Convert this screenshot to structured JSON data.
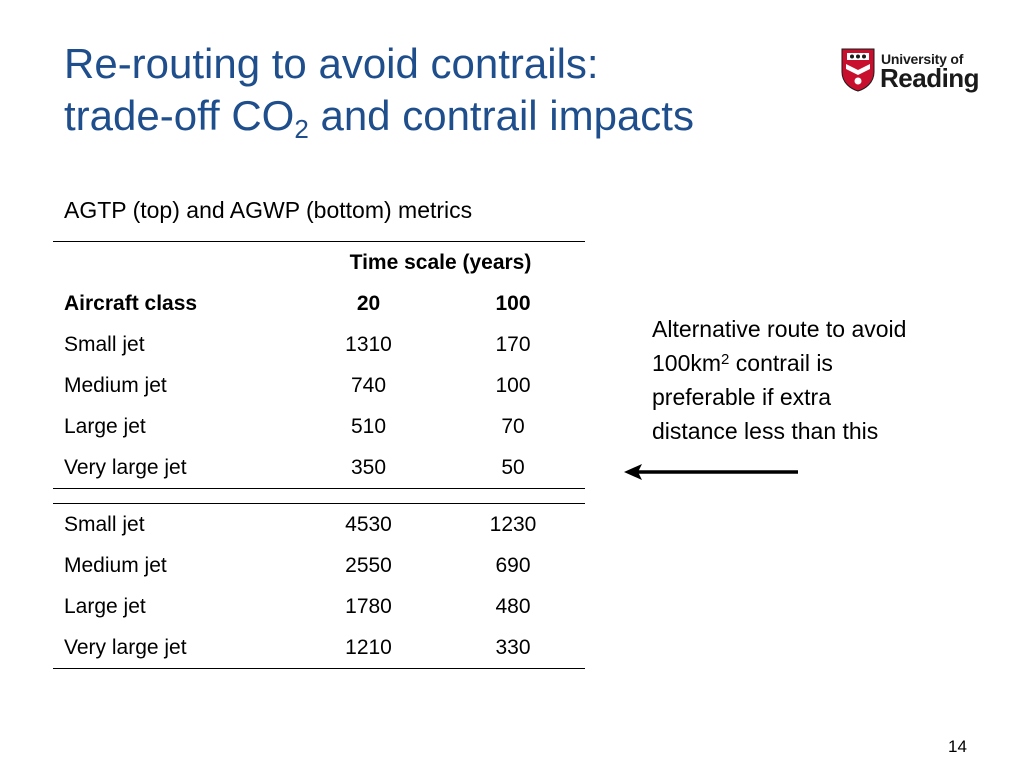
{
  "slide": {
    "title_line1": "Re-routing to avoid contrails:",
    "title_line2_prefix": "trade-off CO",
    "title_subscript": "2",
    "title_line2_suffix": " and contrail impacts",
    "subtitle": "AGTP (top) and AGWP (bottom) metrics",
    "page_number": "14"
  },
  "logo": {
    "line1": "University of",
    "line2": "Reading",
    "shield_colors": [
      "#c8102e",
      "#ffffff",
      "#1a1a1a"
    ]
  },
  "table": {
    "timescale_header": "Time scale (years)",
    "col_class": "Aircraft class",
    "col_20": "20",
    "col_100": "100",
    "agtp_rows": [
      {
        "class": "Small jet",
        "y20": "1310",
        "y100": "170"
      },
      {
        "class": "Medium jet",
        "y20": "740",
        "y100": "100"
      },
      {
        "class": "Large jet",
        "y20": "510",
        "y100": "70"
      },
      {
        "class": "Very large jet",
        "y20": "350",
        "y100": "50"
      }
    ],
    "agwp_rows": [
      {
        "class": "Small jet",
        "y20": "4530",
        "y100": "1230"
      },
      {
        "class": "Medium jet",
        "y20": "2550",
        "y100": "690"
      },
      {
        "class": "Large jet",
        "y20": "1780",
        "y100": "480"
      },
      {
        "class": "Very large jet",
        "y20": "1210",
        "y100": "330"
      }
    ]
  },
  "note": {
    "line1": "Alternative route to avoid",
    "line2_prefix": "100km",
    "line2_sup": "2",
    "line2_suffix": " contrail is",
    "line3": "preferable if extra",
    "line4": "distance less than this"
  },
  "colors": {
    "title": "#1f4e8c",
    "text": "#000000",
    "shield_red": "#c8102e"
  }
}
